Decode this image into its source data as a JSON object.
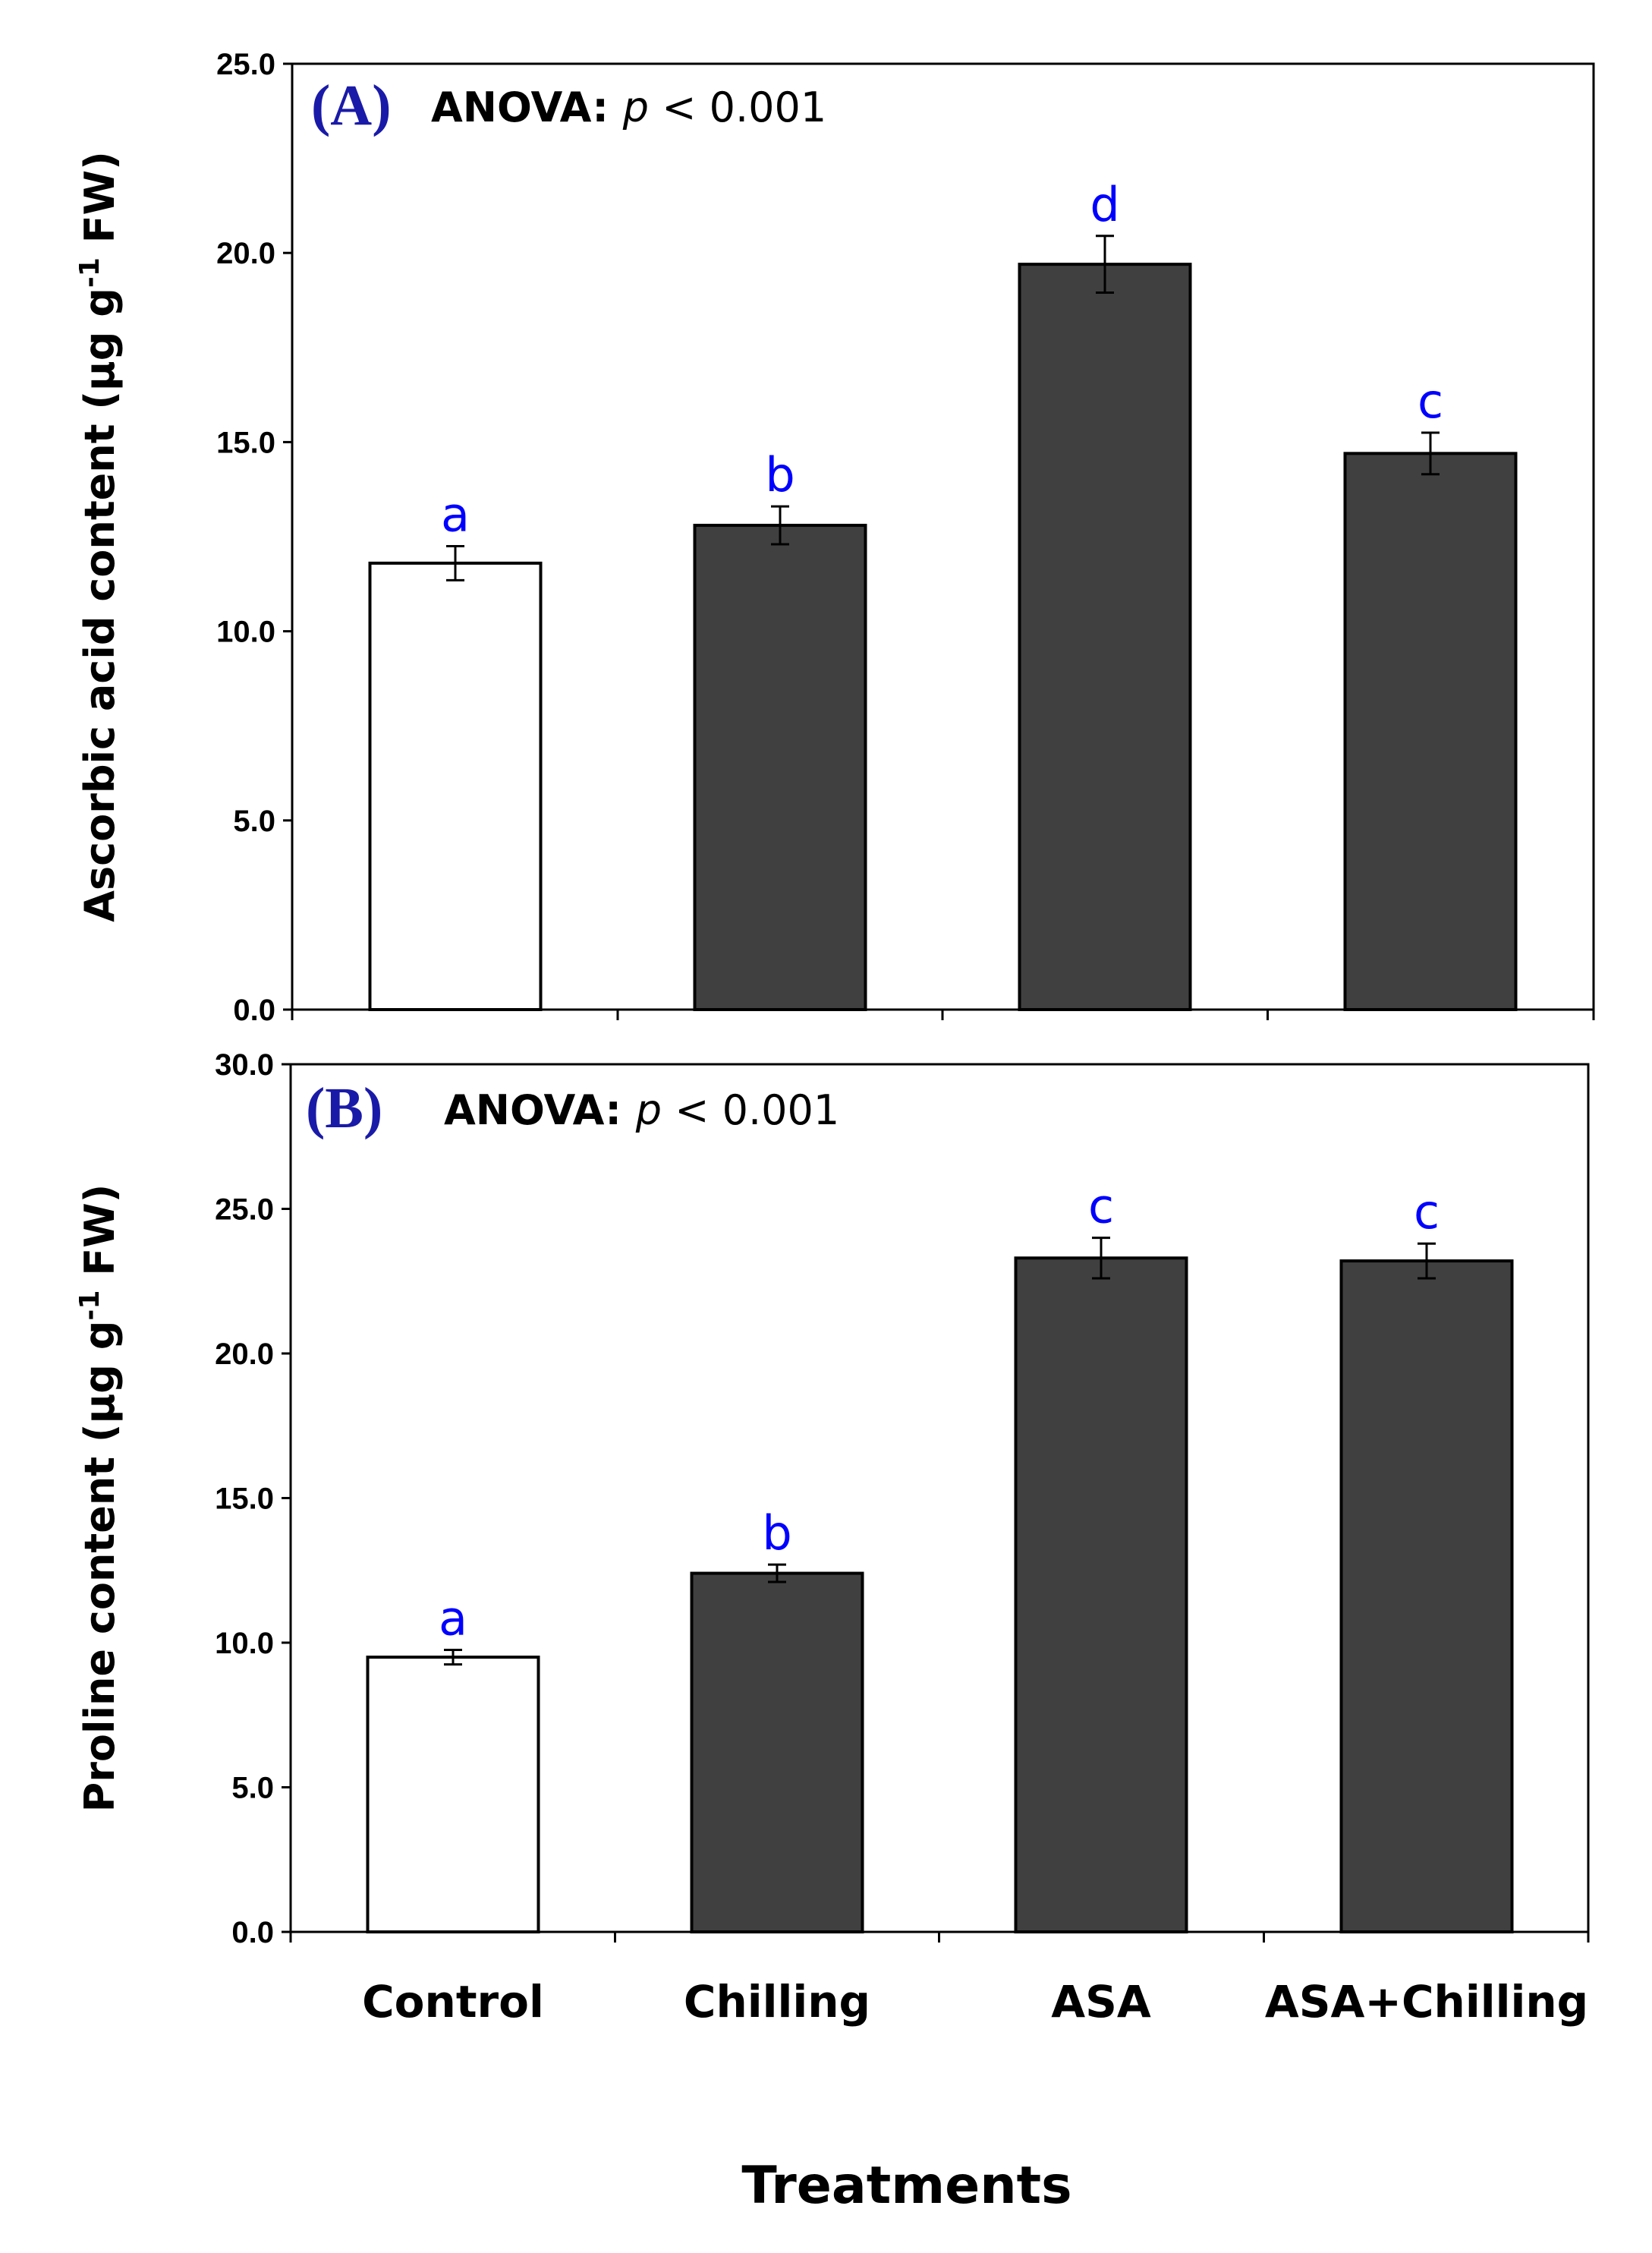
{
  "colors": {
    "control_fill": "#ffffff",
    "treatment_fill": "#404040",
    "bar_stroke": "#000000",
    "letter_color": "#0000ff",
    "panel_tag_color": "#1a1aa8"
  },
  "chart_data": [
    {
      "type": "bar",
      "panel": "A",
      "panel_tag": "(A)",
      "anova_label": "ANOVA:",
      "anova_p": "p",
      "anova_rest": " < 0.001",
      "ylabel": "Ascorbic acid content (µg g-1 FW)",
      "ylabel_main": "Ascorbic acid content (µg g",
      "ylabel_sup": "-1",
      "ylabel_tail": " FW)",
      "ylim": [
        0,
        25
      ],
      "yticks": [
        "0.0",
        "5.0",
        "10.0",
        "15.0",
        "20.0",
        "25.0"
      ],
      "categories": [
        "Control",
        "Chilling",
        "ASA",
        "ASA+Chilling"
      ],
      "values": [
        11.8,
        12.8,
        19.7,
        14.7
      ],
      "errors": [
        0.45,
        0.5,
        0.75,
        0.55
      ],
      "letters": [
        "a",
        "b",
        "d",
        "c"
      ]
    },
    {
      "type": "bar",
      "panel": "B",
      "panel_tag": "(B)",
      "anova_label": "ANOVA:",
      "anova_p": "p",
      "anova_rest": " < 0.001",
      "ylabel": "Proline content (µg g-1 FW)",
      "ylabel_main": "Proline content (µg g",
      "ylabel_sup": "-1",
      "ylabel_tail": " FW)",
      "ylim": [
        0,
        30
      ],
      "yticks": [
        "0.0",
        "5.0",
        "10.0",
        "15.0",
        "20.0",
        "25.0",
        "30.0"
      ],
      "categories": [
        "Control",
        "Chilling",
        "ASA",
        "ASA+Chilling"
      ],
      "values": [
        9.5,
        12.4,
        23.3,
        23.2
      ],
      "errors": [
        0.25,
        0.3,
        0.7,
        0.6
      ],
      "letters": [
        "a",
        "b",
        "c",
        "c"
      ]
    }
  ],
  "xlabel": "Treatments",
  "category_labels": [
    "Control",
    "Chilling",
    "ASA",
    "ASA+Chilling"
  ]
}
